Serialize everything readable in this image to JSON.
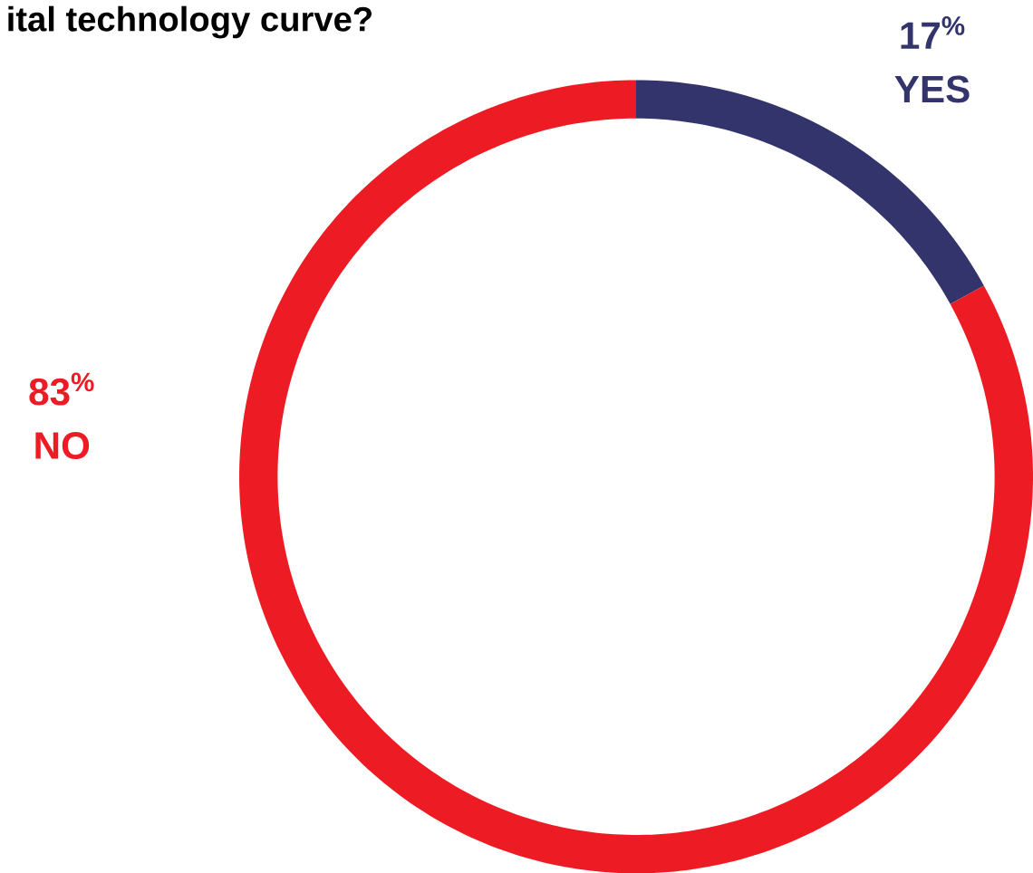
{
  "chart_data": {
    "type": "donut",
    "title": "ital technology curve?",
    "categories": [
      "YES",
      "NO"
    ],
    "values": [
      17,
      83
    ],
    "colors": [
      "#34346c",
      "#ed1c24"
    ],
    "value_labels": [
      "17$^{%}$",
      "83$^{%}$"
    ]
  }
}
